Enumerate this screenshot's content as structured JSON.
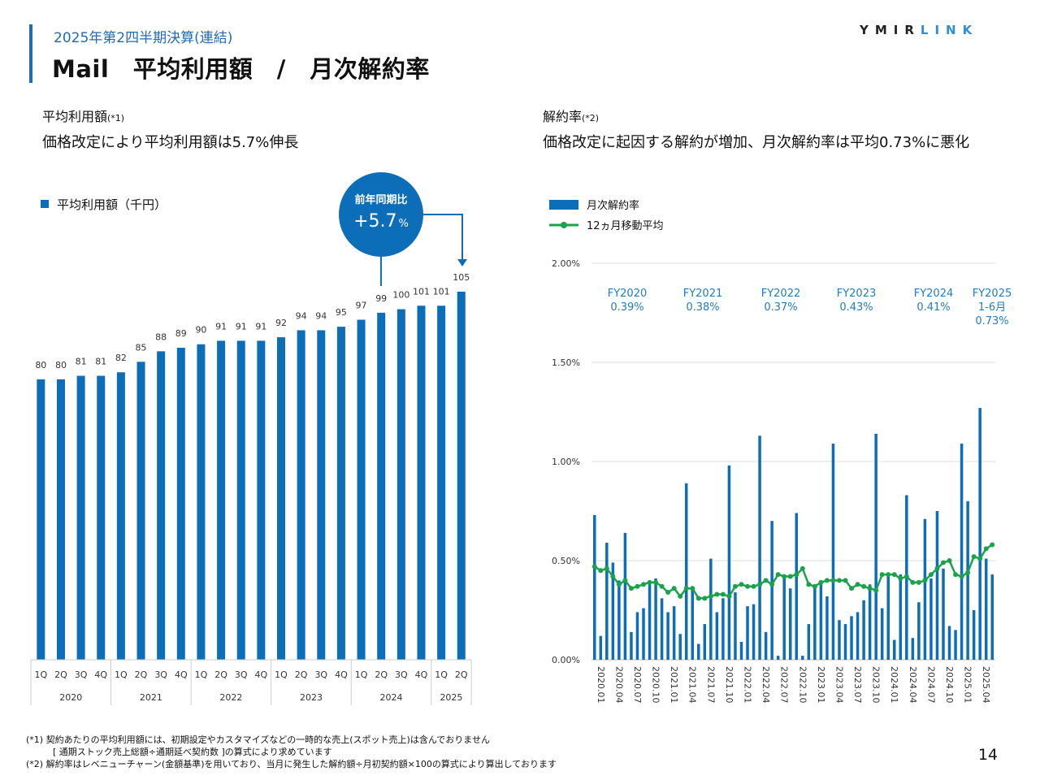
{
  "header": {
    "subtitle": "2025年第2四半期決算(連結)",
    "title": "Mail　平均利用額　/　月次解約率",
    "logo_dark": "YMIR",
    "logo_light": "LINK",
    "logo_colors": {
      "dark": "#222222",
      "light": "#2f8fd6"
    }
  },
  "left_section": {
    "heading": "平均利用額",
    "heading_note": "(*1)",
    "description": "価格改定により平均利用額は5.7%伸長"
  },
  "right_section": {
    "heading": "解約率",
    "heading_note": "(*2)",
    "description": "価格改定に起因する解約が増加、月次解約率は平均0.73%に悪化"
  },
  "chart_data": [
    {
      "type": "bar",
      "legend": "平均利用額（千円）",
      "color": "#0c6db8",
      "categories": [
        "1Q",
        "2Q",
        "3Q",
        "4Q",
        "1Q",
        "2Q",
        "3Q",
        "4Q",
        "1Q",
        "2Q",
        "3Q",
        "4Q",
        "1Q",
        "2Q",
        "3Q",
        "4Q",
        "1Q",
        "2Q",
        "3Q",
        "4Q",
        "1Q",
        "2Q"
      ],
      "years": [
        {
          "label": "2020",
          "count": 4
        },
        {
          "label": "2021",
          "count": 4
        },
        {
          "label": "2022",
          "count": 4
        },
        {
          "label": "2023",
          "count": 4
        },
        {
          "label": "2024",
          "count": 4
        },
        {
          "label": "2025",
          "count": 2
        }
      ],
      "values": [
        80,
        80,
        81,
        81,
        82,
        85,
        88,
        89,
        90,
        91,
        91,
        91,
        92,
        94,
        94,
        95,
        97,
        99,
        100,
        101,
        101,
        105
      ],
      "ylim": [
        0,
        105
      ],
      "callout": {
        "label": "前年同期比",
        "value": "+5.7",
        "unit": "%"
      }
    },
    {
      "type": "bar+line",
      "y_ticks": [
        "0.00%",
        "0.50%",
        "1.00%",
        "1.50%",
        "2.00%"
      ],
      "ylim": [
        0,
        2.0
      ],
      "x_tick_labels": [
        "2020.01",
        "2020.04",
        "2020.07",
        "2020.10",
        "2021.01",
        "2021.04",
        "2021.07",
        "2021.10",
        "2022.01",
        "2022.04",
        "2022.07",
        "2022.10",
        "2023.01",
        "2023.04",
        "2023.07",
        "2023.10",
        "2024.01",
        "2024.04",
        "2024.07",
        "2024.10",
        "2025.01",
        "2025.04"
      ],
      "series": [
        {
          "name": "月次解約率",
          "type": "bar",
          "color": "#0c6db8",
          "values": [
            0.73,
            0.12,
            0.59,
            0.49,
            0.4,
            0.64,
            0.14,
            0.24,
            0.26,
            0.4,
            0.41,
            0.31,
            0.24,
            0.27,
            0.13,
            0.89,
            0.37,
            0.08,
            0.18,
            0.51,
            0.24,
            0.31,
            0.98,
            0.34,
            0.09,
            0.27,
            0.28,
            1.13,
            0.14,
            0.7,
            0.02,
            0.41,
            0.36,
            0.74,
            0.02,
            0.18,
            0.38,
            0.4,
            0.32,
            1.09,
            0.2,
            0.18,
            0.22,
            0.24,
            0.3,
            0.38,
            1.14,
            0.26,
            0.42,
            0.1,
            0.43,
            0.83,
            0.11,
            0.29,
            0.71,
            0.41,
            0.75,
            0.46,
            0.17,
            0.15,
            1.09,
            0.8,
            0.25,
            1.27,
            0.51,
            0.43
          ]
        },
        {
          "name": "12ヵ月移動平均",
          "type": "line",
          "color": "#1aa34a",
          "values": [
            0.47,
            0.45,
            0.46,
            0.42,
            0.38,
            0.4,
            0.36,
            0.37,
            0.38,
            0.39,
            0.39,
            0.37,
            0.34,
            0.36,
            0.32,
            0.36,
            0.36,
            0.31,
            0.31,
            0.32,
            0.33,
            0.33,
            0.32,
            0.37,
            0.38,
            0.37,
            0.37,
            0.38,
            0.4,
            0.38,
            0.43,
            0.42,
            0.42,
            0.43,
            0.46,
            0.38,
            0.37,
            0.39,
            0.4,
            0.4,
            0.4,
            0.4,
            0.36,
            0.38,
            0.37,
            0.36,
            0.35,
            0.43,
            0.43,
            0.43,
            0.41,
            0.42,
            0.39,
            0.39,
            0.4,
            0.43,
            0.46,
            0.49,
            0.5,
            0.43,
            0.42,
            0.44,
            0.52,
            0.51,
            0.56,
            0.58
          ]
        }
      ],
      "fy_annotations": [
        {
          "lines": [
            "FY2020",
            "0.39%"
          ]
        },
        {
          "lines": [
            "FY2021",
            "0.38%"
          ]
        },
        {
          "lines": [
            "FY2022",
            "0.37%"
          ]
        },
        {
          "lines": [
            "FY2023",
            "0.43%"
          ]
        },
        {
          "lines": [
            "FY2024",
            "0.41%"
          ]
        },
        {
          "lines": [
            "FY2025",
            "1-6月",
            "0.73%"
          ]
        }
      ]
    }
  ],
  "footnotes": [
    "(*1) 契約あたりの平均利用額には、初期設定やカスタマイズなどの一時的な売上(スポット売上)は含んでおりません",
    "　　　[ 通期ストック売上総額÷通期延べ契約数 ]の算式により求めています",
    "(*2) 解約率はレベニューチャーン(金額基準)を用いており、当月に発生した解約額÷月初契約額×100の算式により算出しております"
  ],
  "page_number": "14"
}
